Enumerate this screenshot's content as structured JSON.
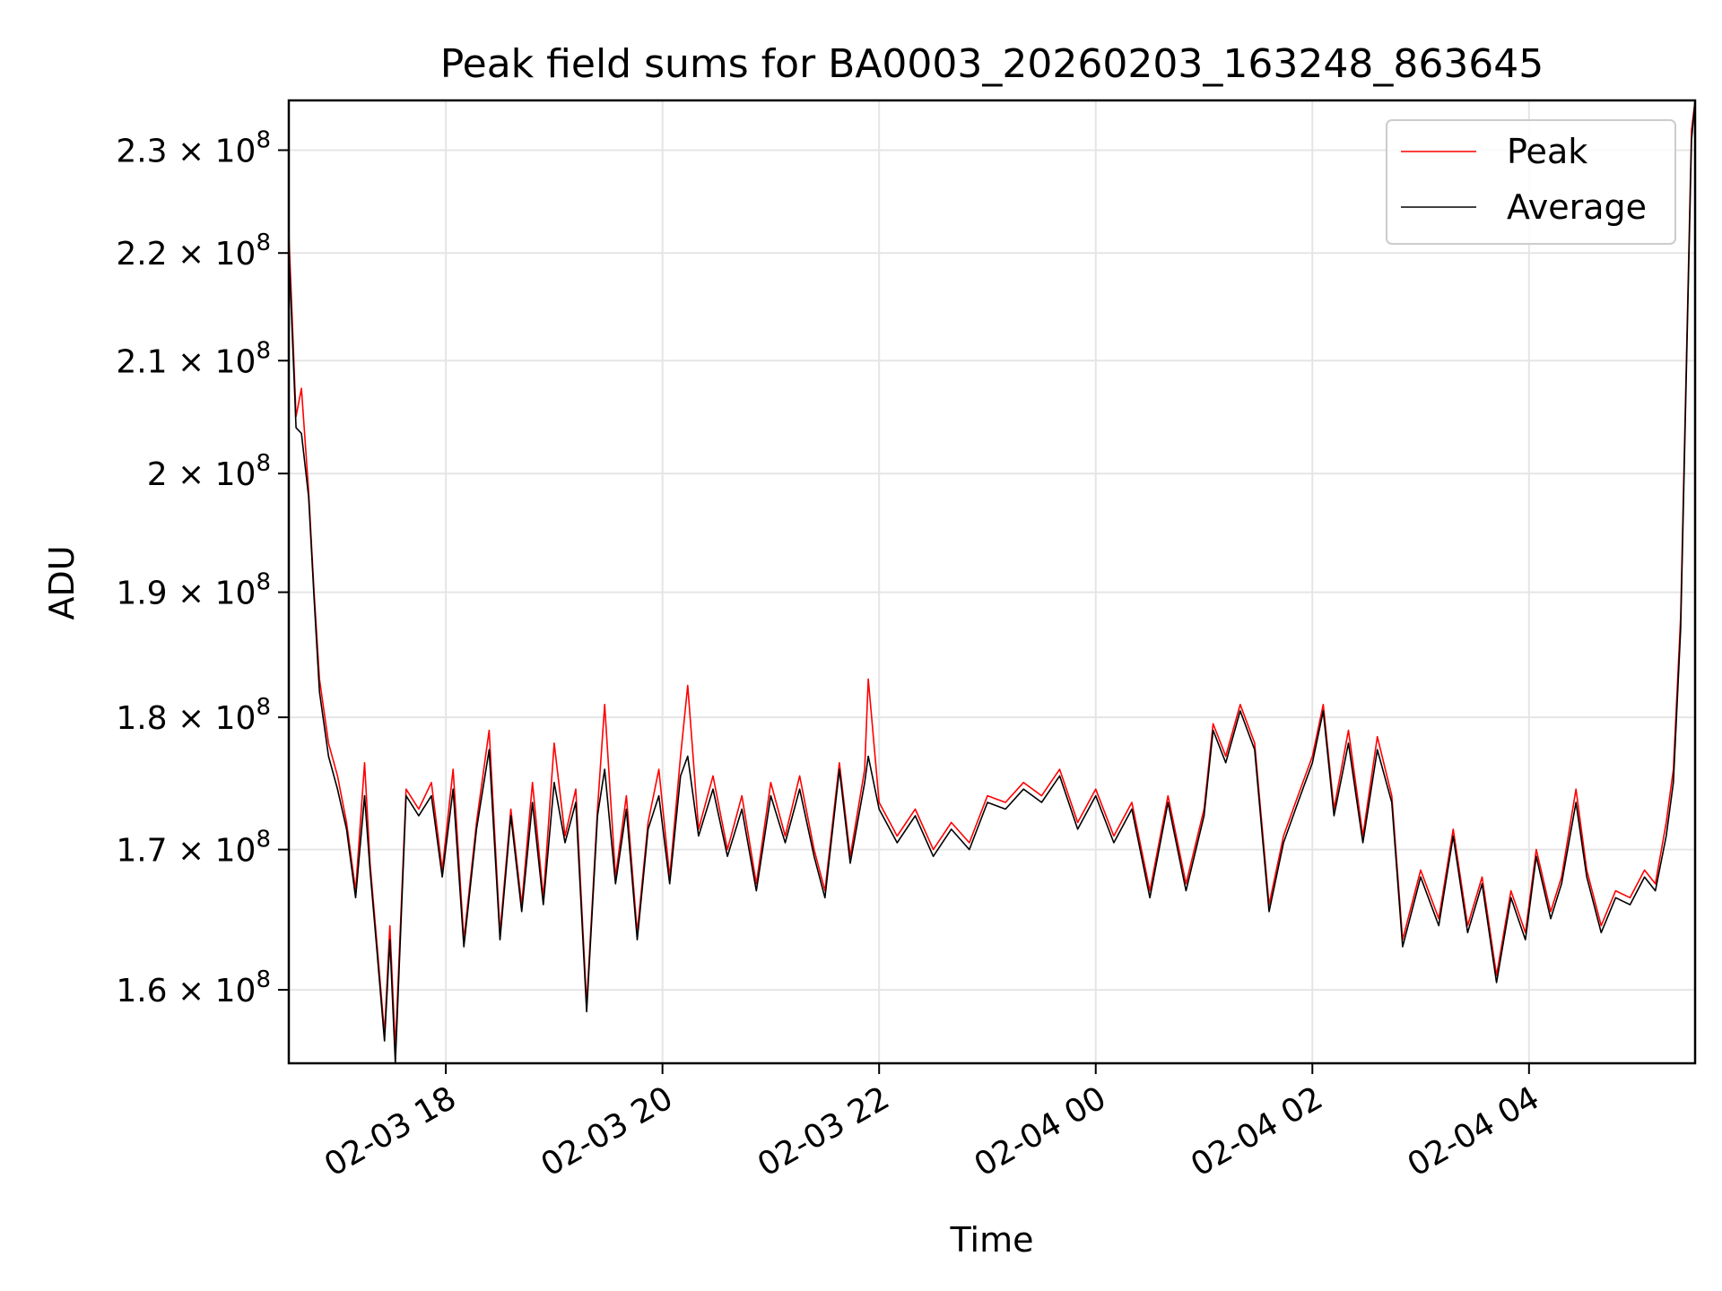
{
  "chart_data": {
    "type": "line",
    "title": "Peak field sums for BA0003_20260203_163248_863645",
    "xlabel": "Time",
    "ylabel": "ADU",
    "y_scale": "log",
    "xlim": [
      "2026-02-03 16:33",
      "2026-02-04 05:32"
    ],
    "ylim": [
      155000000,
      235000000
    ],
    "x_ticks": [
      "02-03 18",
      "02-03 20",
      "02-03 22",
      "02-04 00",
      "02-04 02",
      "02-04 04"
    ],
    "y_ticks": [
      {
        "mantissa": "1.6",
        "exponent": "8",
        "value": 160000000
      },
      {
        "mantissa": "1.7",
        "exponent": "8",
        "value": 170000000
      },
      {
        "mantissa": "1.8",
        "exponent": "8",
        "value": 180000000
      },
      {
        "mantissa": "1.9",
        "exponent": "8",
        "value": 190000000
      },
      {
        "mantissa": "2",
        "exponent": "8",
        "value": 200000000
      },
      {
        "mantissa": "2.1",
        "exponent": "8",
        "value": 210000000
      },
      {
        "mantissa": "2.2",
        "exponent": "8",
        "value": 220000000
      },
      {
        "mantissa": "2.3",
        "exponent": "8",
        "value": 230000000
      }
    ],
    "grid": true,
    "legend_position": "top-right",
    "series": [
      {
        "name": "Peak",
        "color": "#ff0000",
        "points": [
          [
            "2026-02-03 16:33",
            222000000
          ],
          [
            "2026-02-03 16:37",
            205000000
          ],
          [
            "2026-02-03 16:40",
            207500000
          ],
          [
            "2026-02-03 16:44",
            198500000
          ],
          [
            "2026-02-03 16:47",
            190000000
          ],
          [
            "2026-02-03 16:50",
            183000000
          ],
          [
            "2026-02-03 16:55",
            178000000
          ],
          [
            "2026-02-03 17:00",
            175500000
          ],
          [
            "2026-02-03 17:05",
            172000000
          ],
          [
            "2026-02-03 17:10",
            167000000
          ],
          [
            "2026-02-03 17:15",
            176500000
          ],
          [
            "2026-02-03 17:18",
            169000000
          ],
          [
            "2026-02-03 17:22",
            163000000
          ],
          [
            "2026-02-03 17:26",
            157000000
          ],
          [
            "2026-02-03 17:29",
            164500000
          ],
          [
            "2026-02-03 17:32",
            156000000
          ],
          [
            "2026-02-03 17:38",
            174500000
          ],
          [
            "2026-02-03 17:45",
            173000000
          ],
          [
            "2026-02-03 17:52",
            175000000
          ],
          [
            "2026-02-03 17:58",
            168500000
          ],
          [
            "2026-02-03 18:04",
            176000000
          ],
          [
            "2026-02-03 18:10",
            163500000
          ],
          [
            "2026-02-03 18:17",
            172000000
          ],
          [
            "2026-02-03 18:24",
            179000000
          ],
          [
            "2026-02-03 18:30",
            164000000
          ],
          [
            "2026-02-03 18:36",
            173000000
          ],
          [
            "2026-02-03 18:42",
            166000000
          ],
          [
            "2026-02-03 18:48",
            175000000
          ],
          [
            "2026-02-03 18:54",
            166500000
          ],
          [
            "2026-02-03 19:00",
            178000000
          ],
          [
            "2026-02-03 19:06",
            171000000
          ],
          [
            "2026-02-03 19:12",
            174500000
          ],
          [
            "2026-02-03 19:18",
            159000000
          ],
          [
            "2026-02-03 19:24",
            173000000
          ],
          [
            "2026-02-03 19:28",
            181000000
          ],
          [
            "2026-02-03 19:34",
            168000000
          ],
          [
            "2026-02-03 19:40",
            174000000
          ],
          [
            "2026-02-03 19:46",
            164000000
          ],
          [
            "2026-02-03 19:52",
            172000000
          ],
          [
            "2026-02-03 19:58",
            176000000
          ],
          [
            "2026-02-03 20:04",
            168000000
          ],
          [
            "2026-02-03 20:10",
            177000000
          ],
          [
            "2026-02-03 20:14",
            182500000
          ],
          [
            "2026-02-03 20:20",
            171500000
          ],
          [
            "2026-02-03 20:28",
            175500000
          ],
          [
            "2026-02-03 20:36",
            170000000
          ],
          [
            "2026-02-03 20:44",
            174000000
          ],
          [
            "2026-02-03 20:52",
            167500000
          ],
          [
            "2026-02-03 21:00",
            175000000
          ],
          [
            "2026-02-03 21:08",
            171000000
          ],
          [
            "2026-02-03 21:16",
            175500000
          ],
          [
            "2026-02-03 21:24",
            170000000
          ],
          [
            "2026-02-03 21:30",
            167000000
          ],
          [
            "2026-02-03 21:38",
            176500000
          ],
          [
            "2026-02-03 21:44",
            169500000
          ],
          [
            "2026-02-03 21:52",
            176000000
          ],
          [
            "2026-02-03 21:54",
            183000000
          ],
          [
            "2026-02-03 22:00",
            173500000
          ],
          [
            "2026-02-03 22:10",
            171000000
          ],
          [
            "2026-02-03 22:20",
            173000000
          ],
          [
            "2026-02-03 22:30",
            170000000
          ],
          [
            "2026-02-03 22:40",
            172000000
          ],
          [
            "2026-02-03 22:50",
            170500000
          ],
          [
            "2026-02-03 23:00",
            174000000
          ],
          [
            "2026-02-03 23:10",
            173500000
          ],
          [
            "2026-02-03 23:20",
            175000000
          ],
          [
            "2026-02-03 23:30",
            174000000
          ],
          [
            "2026-02-03 23:40",
            176000000
          ],
          [
            "2026-02-03 23:50",
            172000000
          ],
          [
            "2026-02-04 00:00",
            174500000
          ],
          [
            "2026-02-04 00:10",
            171000000
          ],
          [
            "2026-02-04 00:20",
            173500000
          ],
          [
            "2026-02-04 00:30",
            167000000
          ],
          [
            "2026-02-04 00:40",
            174000000
          ],
          [
            "2026-02-04 00:50",
            167500000
          ],
          [
            "2026-02-04 01:00",
            173000000
          ],
          [
            "2026-02-04 01:05",
            179500000
          ],
          [
            "2026-02-04 01:12",
            177000000
          ],
          [
            "2026-02-04 01:20",
            181000000
          ],
          [
            "2026-02-04 01:28",
            178000000
          ],
          [
            "2026-02-04 01:36",
            166000000
          ],
          [
            "2026-02-04 01:44",
            171000000
          ],
          [
            "2026-02-04 01:52",
            174000000
          ],
          [
            "2026-02-04 02:00",
            177000000
          ],
          [
            "2026-02-04 02:06",
            181000000
          ],
          [
            "2026-02-04 02:12",
            173000000
          ],
          [
            "2026-02-04 02:20",
            179000000
          ],
          [
            "2026-02-04 02:28",
            171000000
          ],
          [
            "2026-02-04 02:36",
            178500000
          ],
          [
            "2026-02-04 02:44",
            174000000
          ],
          [
            "2026-02-04 02:50",
            163500000
          ],
          [
            "2026-02-04 03:00",
            168500000
          ],
          [
            "2026-02-04 03:10",
            165000000
          ],
          [
            "2026-02-04 03:18",
            171500000
          ],
          [
            "2026-02-04 03:26",
            164500000
          ],
          [
            "2026-02-04 03:34",
            168000000
          ],
          [
            "2026-02-04 03:42",
            161000000
          ],
          [
            "2026-02-04 03:50",
            167000000
          ],
          [
            "2026-02-04 03:58",
            164000000
          ],
          [
            "2026-02-04 04:04",
            170000000
          ],
          [
            "2026-02-04 04:12",
            165500000
          ],
          [
            "2026-02-04 04:18",
            168000000
          ],
          [
            "2026-02-04 04:26",
            174500000
          ],
          [
            "2026-02-04 04:32",
            168500000
          ],
          [
            "2026-02-04 04:40",
            164500000
          ],
          [
            "2026-02-04 04:48",
            167000000
          ],
          [
            "2026-02-04 04:56",
            166500000
          ],
          [
            "2026-02-04 05:04",
            168500000
          ],
          [
            "2026-02-04 05:10",
            167500000
          ],
          [
            "2026-02-04 05:16",
            172000000
          ],
          [
            "2026-02-04 05:20",
            176000000
          ],
          [
            "2026-02-04 05:24",
            188000000
          ],
          [
            "2026-02-04 05:28",
            216000000
          ],
          [
            "2026-02-04 05:30",
            232000000
          ],
          [
            "2026-02-04 05:32",
            235000000
          ]
        ]
      },
      {
        "name": "Average",
        "color": "#000000",
        "points": [
          [
            "2026-02-03 16:33",
            220500000
          ],
          [
            "2026-02-03 16:37",
            204000000
          ],
          [
            "2026-02-03 16:40",
            203500000
          ],
          [
            "2026-02-03 16:44",
            198000000
          ],
          [
            "2026-02-03 16:47",
            189500000
          ],
          [
            "2026-02-03 16:50",
            182000000
          ],
          [
            "2026-02-03 16:55",
            177000000
          ],
          [
            "2026-02-03 17:00",
            174500000
          ],
          [
            "2026-02-03 17:05",
            171500000
          ],
          [
            "2026-02-03 17:10",
            166500000
          ],
          [
            "2026-02-03 17:15",
            174000000
          ],
          [
            "2026-02-03 17:18",
            168500000
          ],
          [
            "2026-02-03 17:22",
            162500000
          ],
          [
            "2026-02-03 17:26",
            156500000
          ],
          [
            "2026-02-03 17:29",
            163500000
          ],
          [
            "2026-02-03 17:32",
            155000000
          ],
          [
            "2026-02-03 17:38",
            174000000
          ],
          [
            "2026-02-03 17:45",
            172500000
          ],
          [
            "2026-02-03 17:52",
            174000000
          ],
          [
            "2026-02-03 17:58",
            168000000
          ],
          [
            "2026-02-03 18:04",
            174500000
          ],
          [
            "2026-02-03 18:10",
            163000000
          ],
          [
            "2026-02-03 18:17",
            171500000
          ],
          [
            "2026-02-03 18:24",
            177500000
          ],
          [
            "2026-02-03 18:30",
            163500000
          ],
          [
            "2026-02-03 18:36",
            172500000
          ],
          [
            "2026-02-03 18:42",
            165500000
          ],
          [
            "2026-02-03 18:48",
            173500000
          ],
          [
            "2026-02-03 18:54",
            166000000
          ],
          [
            "2026-02-03 19:00",
            175000000
          ],
          [
            "2026-02-03 19:06",
            170500000
          ],
          [
            "2026-02-03 19:12",
            173500000
          ],
          [
            "2026-02-03 19:18",
            158500000
          ],
          [
            "2026-02-03 19:24",
            172500000
          ],
          [
            "2026-02-03 19:28",
            176000000
          ],
          [
            "2026-02-03 19:34",
            167500000
          ],
          [
            "2026-02-03 19:40",
            173000000
          ],
          [
            "2026-02-03 19:46",
            163500000
          ],
          [
            "2026-02-03 19:52",
            171500000
          ],
          [
            "2026-02-03 19:58",
            174000000
          ],
          [
            "2026-02-03 20:04",
            167500000
          ],
          [
            "2026-02-03 20:10",
            175500000
          ],
          [
            "2026-02-03 20:14",
            177000000
          ],
          [
            "2026-02-03 20:20",
            171000000
          ],
          [
            "2026-02-03 20:28",
            174500000
          ],
          [
            "2026-02-03 20:36",
            169500000
          ],
          [
            "2026-02-03 20:44",
            173000000
          ],
          [
            "2026-02-03 20:52",
            167000000
          ],
          [
            "2026-02-03 21:00",
            174000000
          ],
          [
            "2026-02-03 21:08",
            170500000
          ],
          [
            "2026-02-03 21:16",
            174500000
          ],
          [
            "2026-02-03 21:24",
            169500000
          ],
          [
            "2026-02-03 21:30",
            166500000
          ],
          [
            "2026-02-03 21:38",
            176000000
          ],
          [
            "2026-02-03 21:44",
            169000000
          ],
          [
            "2026-02-03 21:52",
            175000000
          ],
          [
            "2026-02-03 21:54",
            177000000
          ],
          [
            "2026-02-03 22:00",
            173000000
          ],
          [
            "2026-02-03 22:10",
            170500000
          ],
          [
            "2026-02-03 22:20",
            172500000
          ],
          [
            "2026-02-03 22:30",
            169500000
          ],
          [
            "2026-02-03 22:40",
            171500000
          ],
          [
            "2026-02-03 22:50",
            170000000
          ],
          [
            "2026-02-03 23:00",
            173500000
          ],
          [
            "2026-02-03 23:10",
            173000000
          ],
          [
            "2026-02-03 23:20",
            174500000
          ],
          [
            "2026-02-03 23:30",
            173500000
          ],
          [
            "2026-02-03 23:40",
            175500000
          ],
          [
            "2026-02-03 23:50",
            171500000
          ],
          [
            "2026-02-04 00:00",
            174000000
          ],
          [
            "2026-02-04 00:10",
            170500000
          ],
          [
            "2026-02-04 00:20",
            173000000
          ],
          [
            "2026-02-04 00:30",
            166500000
          ],
          [
            "2026-02-04 00:40",
            173500000
          ],
          [
            "2026-02-04 00:50",
            167000000
          ],
          [
            "2026-02-04 01:00",
            172500000
          ],
          [
            "2026-02-04 01:05",
            179000000
          ],
          [
            "2026-02-04 01:12",
            176500000
          ],
          [
            "2026-02-04 01:20",
            180500000
          ],
          [
            "2026-02-04 01:28",
            177500000
          ],
          [
            "2026-02-04 01:36",
            165500000
          ],
          [
            "2026-02-04 01:44",
            170500000
          ],
          [
            "2026-02-04 01:52",
            173500000
          ],
          [
            "2026-02-04 02:00",
            176500000
          ],
          [
            "2026-02-04 02:06",
            180500000
          ],
          [
            "2026-02-04 02:12",
            172500000
          ],
          [
            "2026-02-04 02:20",
            178000000
          ],
          [
            "2026-02-04 02:28",
            170500000
          ],
          [
            "2026-02-04 02:36",
            177500000
          ],
          [
            "2026-02-04 02:44",
            173500000
          ],
          [
            "2026-02-04 02:50",
            163000000
          ],
          [
            "2026-02-04 03:00",
            168000000
          ],
          [
            "2026-02-04 03:10",
            164500000
          ],
          [
            "2026-02-04 03:18",
            171000000
          ],
          [
            "2026-02-04 03:26",
            164000000
          ],
          [
            "2026-02-04 03:34",
            167500000
          ],
          [
            "2026-02-04 03:42",
            160500000
          ],
          [
            "2026-02-04 03:50",
            166500000
          ],
          [
            "2026-02-04 03:58",
            163500000
          ],
          [
            "2026-02-04 04:04",
            169500000
          ],
          [
            "2026-02-04 04:12",
            165000000
          ],
          [
            "2026-02-04 04:18",
            167500000
          ],
          [
            "2026-02-04 04:26",
            173500000
          ],
          [
            "2026-02-04 04:32",
            168000000
          ],
          [
            "2026-02-04 04:40",
            164000000
          ],
          [
            "2026-02-04 04:48",
            166500000
          ],
          [
            "2026-02-04 04:56",
            166000000
          ],
          [
            "2026-02-04 05:04",
            168000000
          ],
          [
            "2026-02-04 05:10",
            167000000
          ],
          [
            "2026-02-04 05:16",
            171000000
          ],
          [
            "2026-02-04 05:20",
            175000000
          ],
          [
            "2026-02-04 05:24",
            187000000
          ],
          [
            "2026-02-04 05:28",
            215000000
          ],
          [
            "2026-02-04 05:30",
            231000000
          ],
          [
            "2026-02-04 05:32",
            235000000
          ]
        ]
      }
    ]
  }
}
